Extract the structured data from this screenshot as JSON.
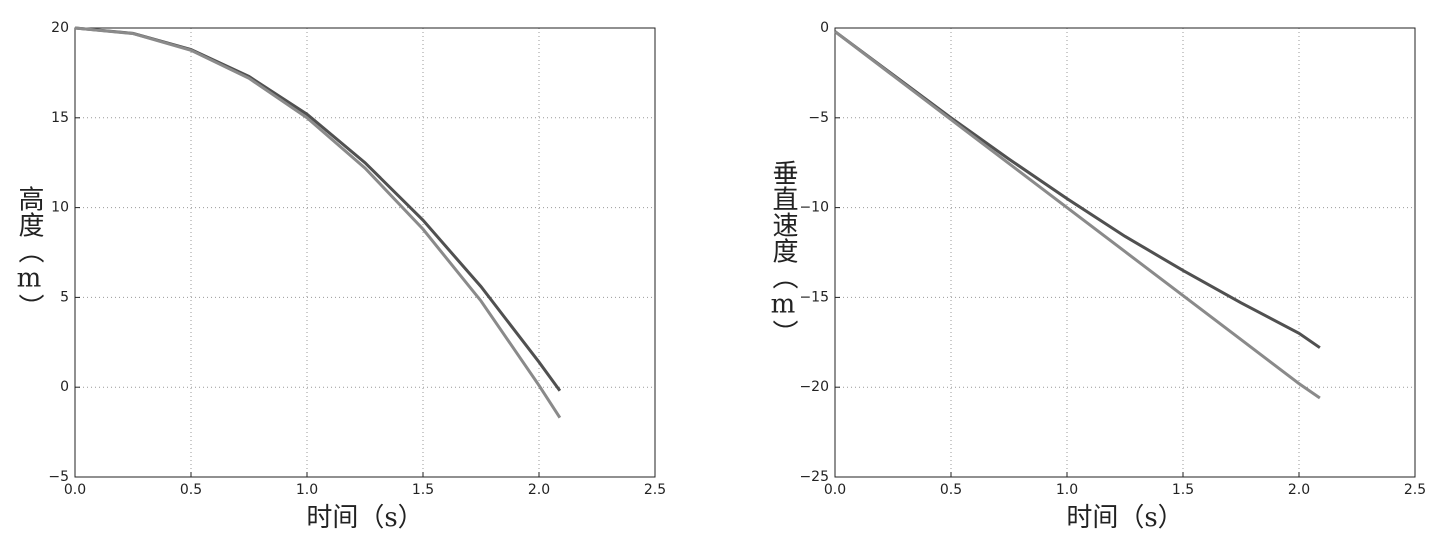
{
  "chart_data": [
    {
      "type": "line",
      "xlabel": "时间（s）",
      "ylabel": "高度（m）",
      "x": [
        0,
        0.25,
        0.5,
        0.75,
        1.0,
        1.25,
        1.5,
        1.75,
        2.0,
        2.09
      ],
      "series": [
        {
          "color": "#505050",
          "values": [
            20,
            19.7,
            18.8,
            17.3,
            15.2,
            12.5,
            9.3,
            5.6,
            1.4,
            -0.2
          ]
        },
        {
          "color": "#8a8a8a",
          "values": [
            20,
            19.69,
            18.76,
            17.2,
            15.0,
            12.2,
            8.8,
            4.8,
            0.1,
            -1.7
          ]
        }
      ],
      "xlim": [
        0,
        2.5
      ],
      "ylim": [
        -5,
        20
      ],
      "xticks": [
        {
          "value": 0,
          "label": "0.0"
        },
        0.5,
        {
          "value": 1,
          "label": "1.0"
        },
        1.5,
        {
          "value": 2,
          "label": "2.0"
        },
        2.5
      ],
      "yticks": [
        {
          "value": -5,
          "label": "−5"
        },
        0,
        5,
        10,
        15,
        20
      ],
      "grid": true
    },
    {
      "type": "line",
      "xlabel": "时间（s）",
      "ylabel": "垂直速度（m）",
      "x": [
        0,
        0.25,
        0.5,
        0.75,
        1.0,
        1.25,
        1.5,
        1.75,
        2.0,
        2.09
      ],
      "series": [
        {
          "color": "#505050",
          "values": [
            -0.2,
            -2.6,
            -5.0,
            -7.3,
            -9.5,
            -11.6,
            -13.5,
            -15.3,
            -17.0,
            -17.8
          ]
        },
        {
          "color": "#8a8a8a",
          "values": [
            -0.2,
            -2.65,
            -5.1,
            -7.55,
            -10.0,
            -12.45,
            -14.9,
            -17.35,
            -19.8,
            -20.6
          ]
        }
      ],
      "xlim": [
        0,
        2.5
      ],
      "ylim": [
        -25,
        0
      ],
      "xticks": [
        {
          "value": 0,
          "label": "0.0"
        },
        0.5,
        {
          "value": 1,
          "label": "1.0"
        },
        1.5,
        {
          "value": 2,
          "label": "2.0"
        },
        2.5
      ],
      "yticks": [
        {
          "value": -25,
          "label": "−25"
        },
        {
          "value": -20,
          "label": "−20"
        },
        {
          "value": -15,
          "label": "−15"
        },
        {
          "value": -10,
          "label": "−10"
        },
        {
          "value": -5,
          "label": "−5"
        },
        0
      ],
      "grid": true
    }
  ]
}
